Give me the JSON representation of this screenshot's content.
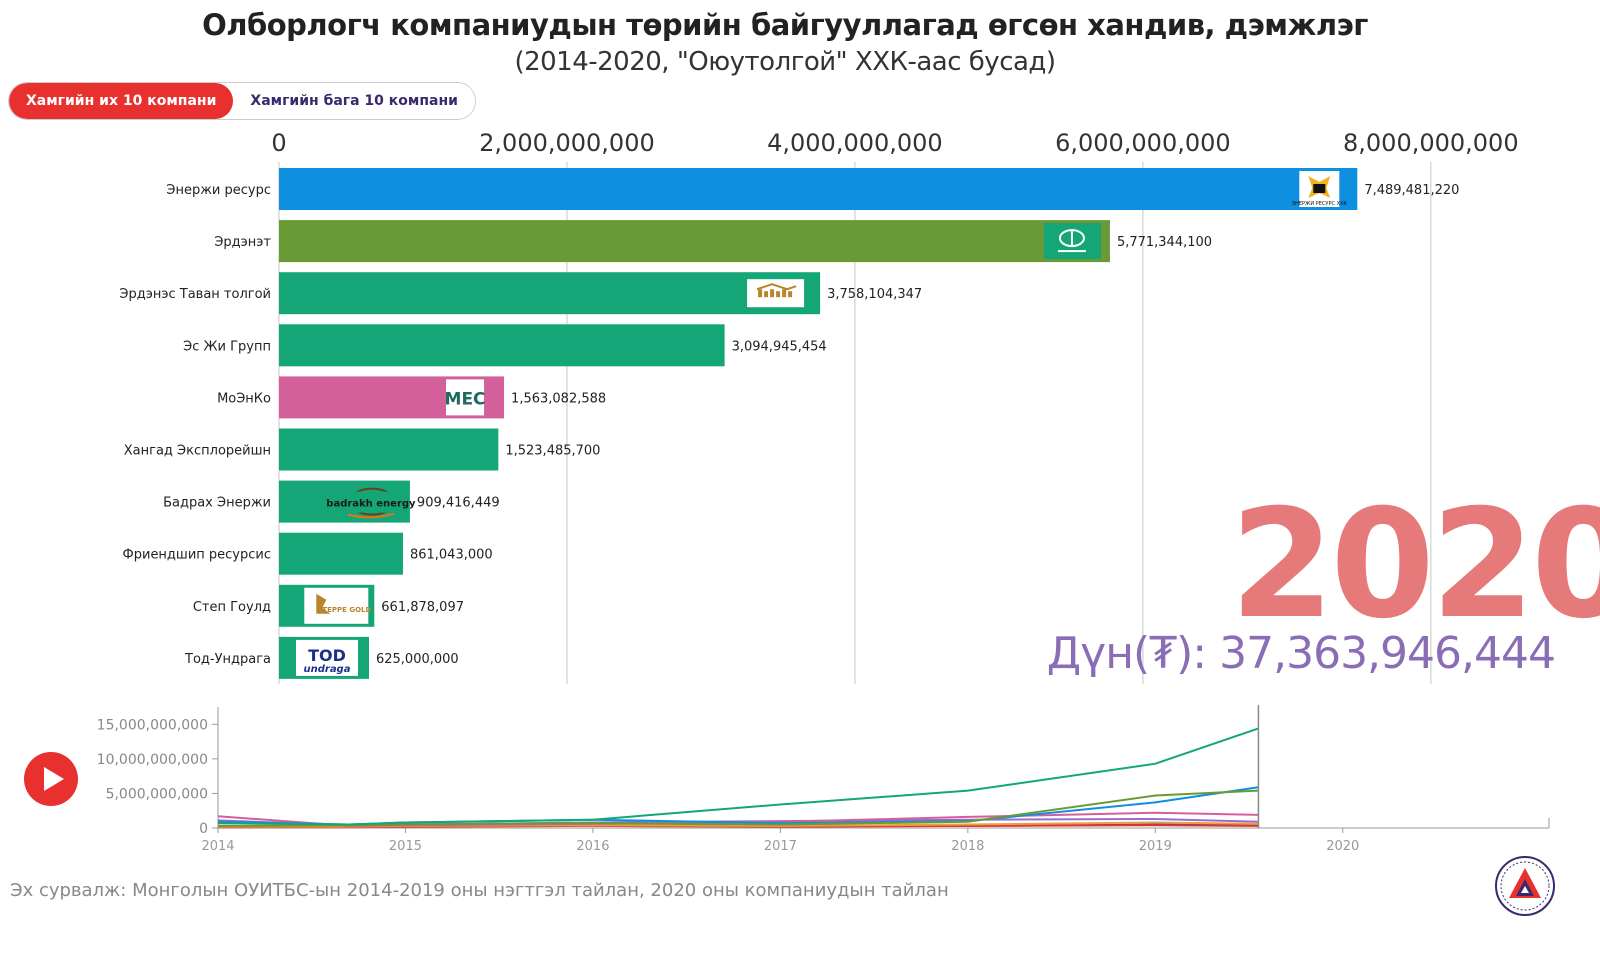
{
  "title": "Олборлогч компаниудын төрийн байгууллагад өгсөн хандив, дэмжлэг",
  "subtitle": "(2014-2020, \"Оюутолгой\" ХХК-аас бусад)",
  "toggle": {
    "top10_label": "Хамгийн их 10 компани",
    "bottom10_label": "Хамгийн бага 10 компани"
  },
  "year_display": "2020",
  "total_label": "Дүн(₮): 37,363,946,444",
  "source": "Эх сурвалж: Монголын ОУИТБС-ын 2014-2019 оны нэгтгэл тайлан, 2020 оны компаниудын тайлан",
  "colors": {
    "accent_red": "#e8312f",
    "year_color": "#e67a7a",
    "total_color": "#8a6db5"
  },
  "chart_data": [
    {
      "type": "bar",
      "orientation": "horizontal",
      "xlim": [
        0,
        8800000000
      ],
      "x_ticks": [
        0,
        2000000000,
        4000000000,
        6000000000,
        8000000000
      ],
      "x_tick_labels": [
        "0",
        "2,000,000,000",
        "4,000,000,000",
        "6,000,000,000",
        "8,000,000,000"
      ],
      "grid": true,
      "categories": [
        "Энержи ресурс",
        "Эрдэнэт",
        "Эрдэнэс Таван толгой",
        "Эс Жи Групп",
        "МоЭнКо",
        "Хангад Эксплорейшн",
        "Бадрах Энержи",
        "Фриендшип ресурсис",
        "Степ Гоулд",
        "Тод-Ундрага"
      ],
      "values": [
        7489481220,
        5771344100,
        3758104347,
        3094945454,
        1563082588,
        1523485700,
        909416449,
        861043000,
        661878097,
        625000000
      ],
      "value_labels": [
        "7,489,481,220",
        "5,771,344,100",
        "3,758,104,347",
        "3,094,945,454",
        "1,563,082,588",
        "1,523,485,700",
        "909,416,449",
        "861,043,000",
        "661,878,097",
        "625,000,000"
      ],
      "bar_colors": [
        "#0f8fe0",
        "#6a9a35",
        "#14a677",
        "#14a677",
        "#d4609b",
        "#14a677",
        "#14a677",
        "#14a677",
        "#14a677",
        "#14a677"
      ],
      "logos": [
        {
          "label": "ЭНЕРЖИ РЕСУРС ХХК",
          "icon": "energy-resources-logo"
        },
        {
          "label": "",
          "icon": "erdenet-logo"
        },
        {
          "label": "",
          "icon": "erdenes-tavan-tolgoi-logo"
        },
        null,
        {
          "label": "MEC",
          "icon": "moenco-logo"
        },
        null,
        {
          "label": "badrakh energy",
          "icon": "badrakh-energy-logo"
        },
        null,
        {
          "label": "STEPPE GOLD",
          "icon": "steppe-gold-logo"
        },
        {
          "label": "TOD undraga",
          "icon": "tod-undraga-logo"
        }
      ]
    },
    {
      "type": "line",
      "x": [
        2014,
        2014.7,
        2015,
        2016,
        2017,
        2018,
        2019,
        2019.55
      ],
      "xlim": [
        2014,
        2021.1
      ],
      "x_ticks": [
        2014,
        2015,
        2016,
        2017,
        2018,
        2019,
        2020
      ],
      "x_tick_labels": [
        "2014",
        "2015",
        "2016",
        "2017",
        "2018",
        "2019",
        "2020"
      ],
      "ylim": [
        0,
        17500000000
      ],
      "y_ticks": [
        0,
        5000000000,
        10000000000,
        15000000000
      ],
      "y_tick_labels": [
        "0",
        "5,000,000,000",
        "10,000,000,000",
        "15,000,000,000"
      ],
      "current_x": 2019.55,
      "series": [
        {
          "color": "#14a677",
          "values": [
            700000000,
            500000000,
            800000000,
            1200000000,
            3400000000,
            5400000000,
            9300000000,
            14400000000
          ]
        },
        {
          "color": "#6a9a35",
          "values": [
            300000000,
            400000000,
            500000000,
            700000000,
            500000000,
            900000000,
            4700000000,
            5400000000
          ]
        },
        {
          "color": "#0f8fe0",
          "values": [
            900000000,
            500000000,
            800000000,
            1200000000,
            700000000,
            1000000000,
            3700000000,
            5900000000
          ]
        },
        {
          "color": "#d4609b",
          "values": [
            1700000000,
            300000000,
            400000000,
            600000000,
            900000000,
            1600000000,
            2200000000,
            1900000000
          ]
        },
        {
          "color": "#9b6ad4",
          "values": [
            1100000000,
            400000000,
            500000000,
            800000000,
            1000000000,
            1200000000,
            1300000000,
            900000000
          ]
        },
        {
          "color": "#e8a03a",
          "values": [
            200000000,
            200000000,
            300000000,
            400000000,
            300000000,
            500000000,
            800000000,
            600000000
          ]
        },
        {
          "color": "#e8312f",
          "values": [
            100000000,
            100000000,
            200000000,
            300000000,
            200000000,
            300000000,
            400000000,
            300000000
          ]
        },
        {
          "color": "#1b5fa8",
          "values": [
            300000000,
            200000000,
            300000000,
            500000000,
            400000000,
            300000000,
            500000000,
            400000000
          ]
        }
      ]
    }
  ]
}
